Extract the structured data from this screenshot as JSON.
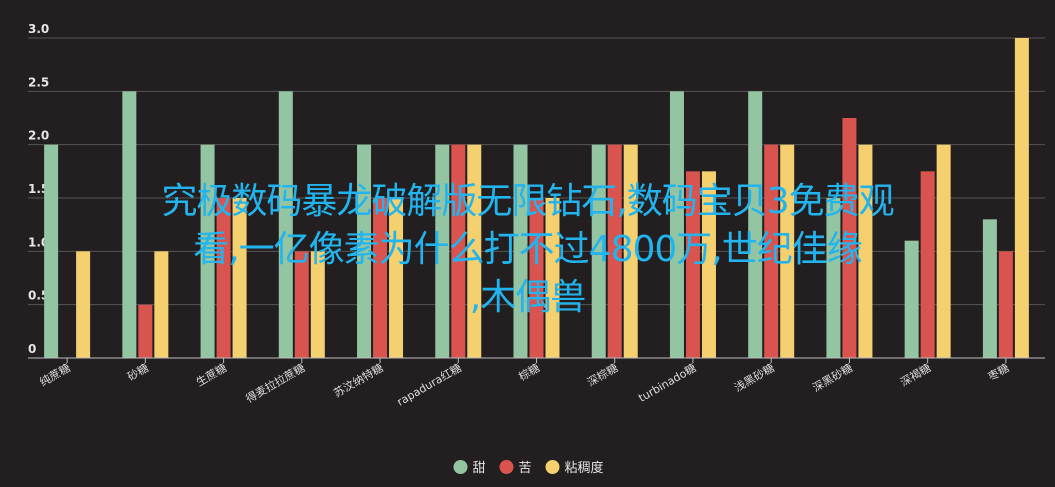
{
  "chart_data": {
    "type": "bar",
    "categories": [
      "纯蔗糖",
      "砂糖",
      "生蔗糖",
      "得麦拉拉蔗糖",
      "苏汶纳特糖",
      "rapadura红糖",
      "棕糖",
      "深棕糖",
      "turbinado糖",
      "浅黑砂糖",
      "深黑砂糖",
      "深褐糖",
      "枣糖"
    ],
    "series": [
      {
        "name": "甜",
        "color": "#93c5a2",
        "values": [
          2.0,
          2.5,
          2.0,
          2.5,
          2.0,
          2.0,
          2.0,
          2.0,
          2.5,
          2.5,
          1.5,
          1.1,
          1.3
        ]
      },
      {
        "name": "苦",
        "color": "#d9534f",
        "values": [
          0,
          0.5,
          1.5,
          1.0,
          1.5,
          2.0,
          1.5,
          2.0,
          1.75,
          2.0,
          2.25,
          1.75,
          1.0
        ]
      },
      {
        "name": "粘稠度",
        "color": "#f4d06f",
        "values": [
          1.0,
          1.0,
          1.5,
          1.0,
          1.5,
          2.0,
          1.5,
          2.0,
          1.75,
          2.0,
          2.0,
          2.0,
          3.0
        ]
      }
    ],
    "yticks": [
      "0",
      "0.5",
      "1.0",
      "1.5",
      "2.0",
      "2.5",
      "3.0"
    ],
    "ylim": [
      0,
      3
    ],
    "grid": true,
    "legend_position": "bottom"
  },
  "overlay_text": {
    "line1": "究极数码暴龙破解版无限钻石,数码宝贝3免费观",
    "line2": "看,一亿像素为什么打不过4800万,世纪佳缘",
    "line3": ",木偶兽"
  }
}
